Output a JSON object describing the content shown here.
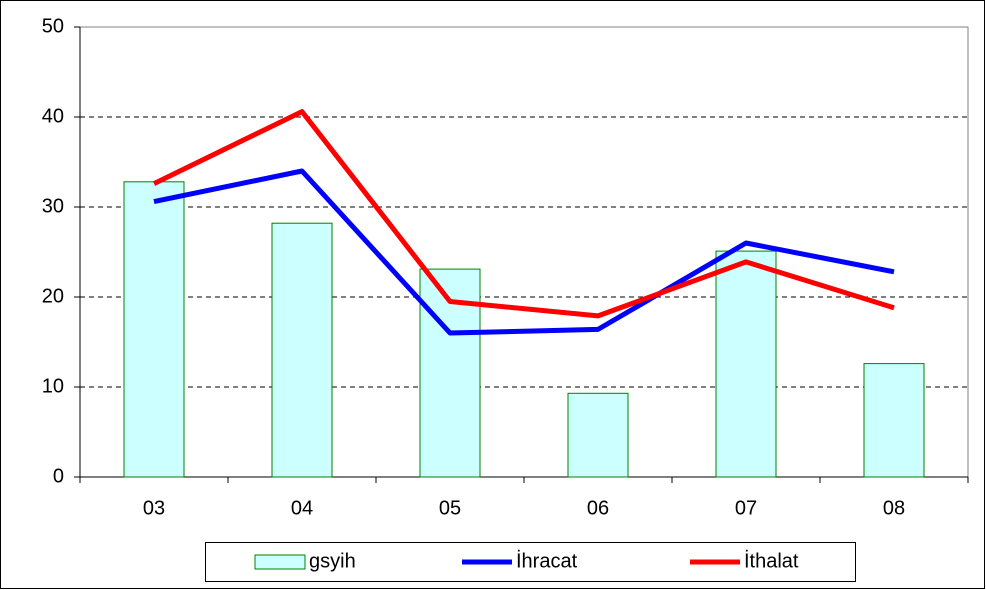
{
  "chart_data": {
    "type": "bar",
    "categories": [
      "03",
      "04",
      "05",
      "06",
      "07",
      "08"
    ],
    "series": [
      {
        "name": "gsyih",
        "type": "bar",
        "color": "#ccffff",
        "edge_color": "#008000",
        "values": [
          32.8,
          28.2,
          23.1,
          9.3,
          25.1,
          12.6
        ]
      },
      {
        "name": "İhracat",
        "type": "line",
        "color": "#0000ff",
        "values": [
          30.6,
          34.0,
          16.0,
          16.4,
          26.0,
          22.8
        ]
      },
      {
        "name": "İthalat",
        "type": "line",
        "color": "#ff0000",
        "values": [
          32.6,
          40.6,
          19.5,
          17.9,
          23.9,
          18.8
        ]
      }
    ],
    "ylim": [
      0,
      50
    ],
    "yticks": [
      0,
      10,
      20,
      30,
      40,
      50
    ],
    "grid": true,
    "legend": "bottom"
  }
}
